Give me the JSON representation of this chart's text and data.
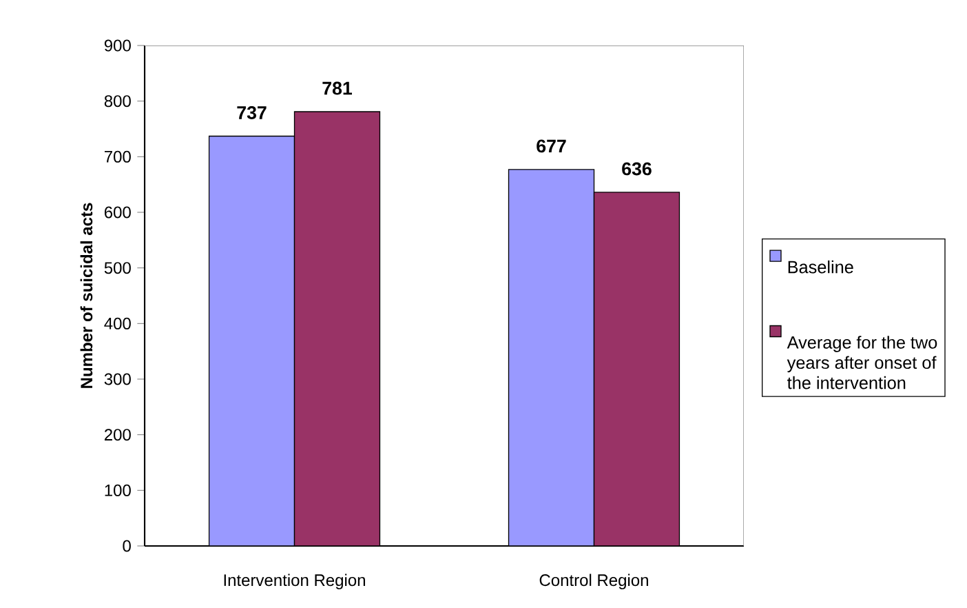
{
  "chart_data": {
    "type": "bar",
    "ylabel": "Number of suicidal acts",
    "categories": [
      "Intervention Region",
      "Control Region"
    ],
    "series": [
      {
        "name": "Baseline",
        "color": "#9999ff",
        "values": [
          737,
          677
        ]
      },
      {
        "name": "Average for the two years after onset of the intervention",
        "color": "#993366",
        "values": [
          781,
          636
        ]
      }
    ],
    "ylim": [
      0,
      900
    ],
    "yticks": [
      0,
      100,
      200,
      300,
      400,
      500,
      600,
      700,
      800,
      900
    ],
    "data_labels": true,
    "legend": "right"
  }
}
